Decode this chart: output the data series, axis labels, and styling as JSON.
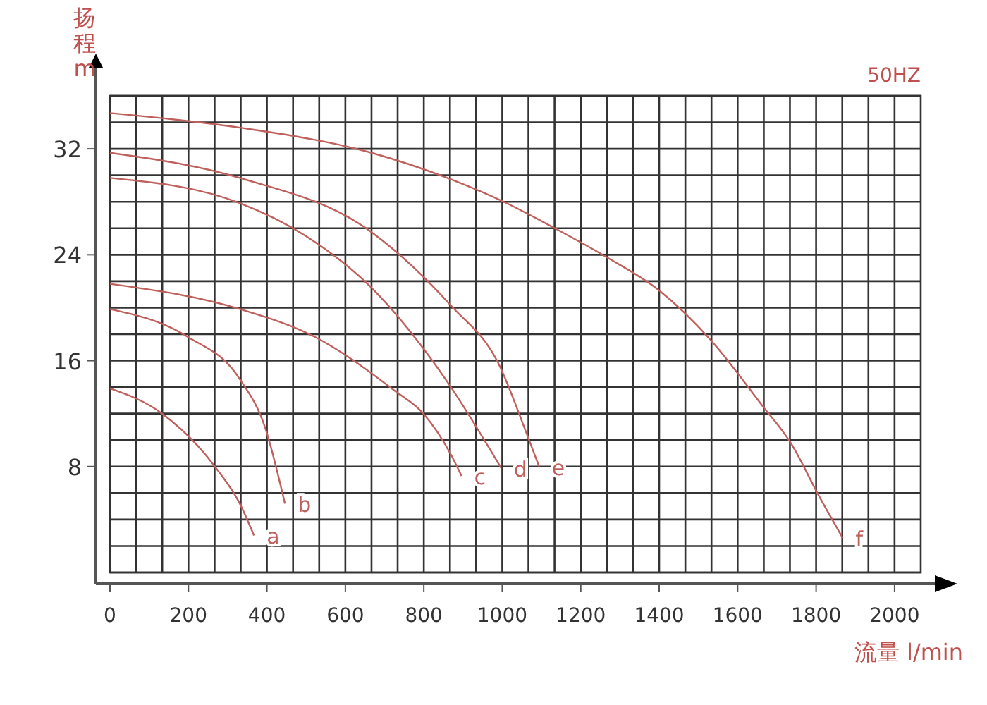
{
  "chart_data": {
    "type": "line",
    "xlabel": "流量 l/min",
    "ylabel": "扬程 m",
    "annotations": [
      "50HZ"
    ],
    "xlim": [
      0,
      2066.7
    ],
    "ylim": [
      0,
      36
    ],
    "xticks": [
      0,
      {
        "value": 66.7,
        "label": null
      },
      {
        "value": 133.3,
        "label": null
      },
      200,
      {
        "value": 266.7,
        "label": null
      },
      {
        "value": 333.3,
        "label": null
      },
      400,
      {
        "value": 466.7,
        "label": null
      },
      {
        "value": 533.3,
        "label": null
      },
      600,
      {
        "value": 666.7,
        "label": null
      },
      {
        "value": 733.3,
        "label": null
      },
      800,
      {
        "value": 866.7,
        "label": null
      },
      {
        "value": 933.3,
        "label": null
      },
      1000,
      {
        "value": 1066.7,
        "label": null
      },
      {
        "value": 1133.3,
        "label": null
      },
      1200,
      {
        "value": 1266.7,
        "label": null
      },
      {
        "value": 1333.3,
        "label": null
      },
      1400,
      {
        "value": 1466.7,
        "label": null
      },
      {
        "value": 1533.3,
        "label": null
      },
      1600,
      {
        "value": 1666.7,
        "label": null
      },
      {
        "value": 1733.3,
        "label": null
      },
      1800,
      {
        "value": 1866.7,
        "label": null
      },
      {
        "value": 1933.3,
        "label": null
      },
      2000
    ],
    "yticks": [
      {
        "value": 0,
        "label": null
      },
      {
        "value": 2,
        "label": null
      },
      {
        "value": 4,
        "label": null
      },
      {
        "value": 6,
        "label": null
      },
      8,
      {
        "value": 10,
        "label": null
      },
      {
        "value": 12,
        "label": null
      },
      {
        "value": 14,
        "label": null
      },
      16,
      {
        "value": 18,
        "label": null
      },
      {
        "value": 20,
        "label": null
      },
      {
        "value": 22,
        "label": null
      },
      24,
      {
        "value": 26,
        "label": null
      },
      {
        "value": 28,
        "label": null
      },
      {
        "value": 30,
        "label": null
      },
      32,
      {
        "value": 34,
        "label": null
      },
      {
        "value": 36,
        "label": null
      }
    ],
    "grid": true,
    "marker": "none",
    "line_style": "solid",
    "legend": false,
    "series": [
      {
        "name": "a",
        "color": "#c0605c",
        "x": [
          0,
          133,
          270,
          331,
          367
        ],
        "values": [
          13.9,
          12,
          7.9,
          5.2,
          2.8
        ]
      },
      {
        "name": "b",
        "color": "#c0605c",
        "x": [
          0,
          198,
          331,
          396,
          446
        ],
        "values": [
          19.9,
          17.8,
          14.6,
          10.9,
          5.2
        ]
      },
      {
        "name": "c",
        "color": "#c0605c",
        "x": [
          0,
          331,
          522,
          727,
          799,
          871,
          896
        ],
        "values": [
          21.8,
          19.9,
          17.8,
          13.7,
          12,
          8.8,
          7.3
        ]
      },
      {
        "name": "d",
        "color": "#c0605c",
        "x": [
          0,
          331,
          500,
          667,
          860,
          997
        ],
        "values": [
          29.8,
          27.9,
          25.4,
          21.5,
          14.4,
          7.9
        ]
      },
      {
        "name": "e",
        "color": "#c0605c",
        "x": [
          0,
          331,
          667,
          871,
          990,
          1062,
          1094
        ],
        "values": [
          31.7,
          29.8,
          25.7,
          20.1,
          15.8,
          10.5,
          8
        ]
      },
      {
        "name": "f",
        "color": "#c0605c",
        "x": [
          0,
          331,
          667,
          860,
          1004,
          1134,
          1267,
          1400,
          1530,
          1663,
          1735,
          1807,
          1868
        ],
        "values": [
          34.7,
          33.6,
          31.7,
          29.8,
          28,
          26,
          23.8,
          21.3,
          17.6,
          12.6,
          9.8,
          5.8,
          2.6
        ]
      }
    ]
  }
}
